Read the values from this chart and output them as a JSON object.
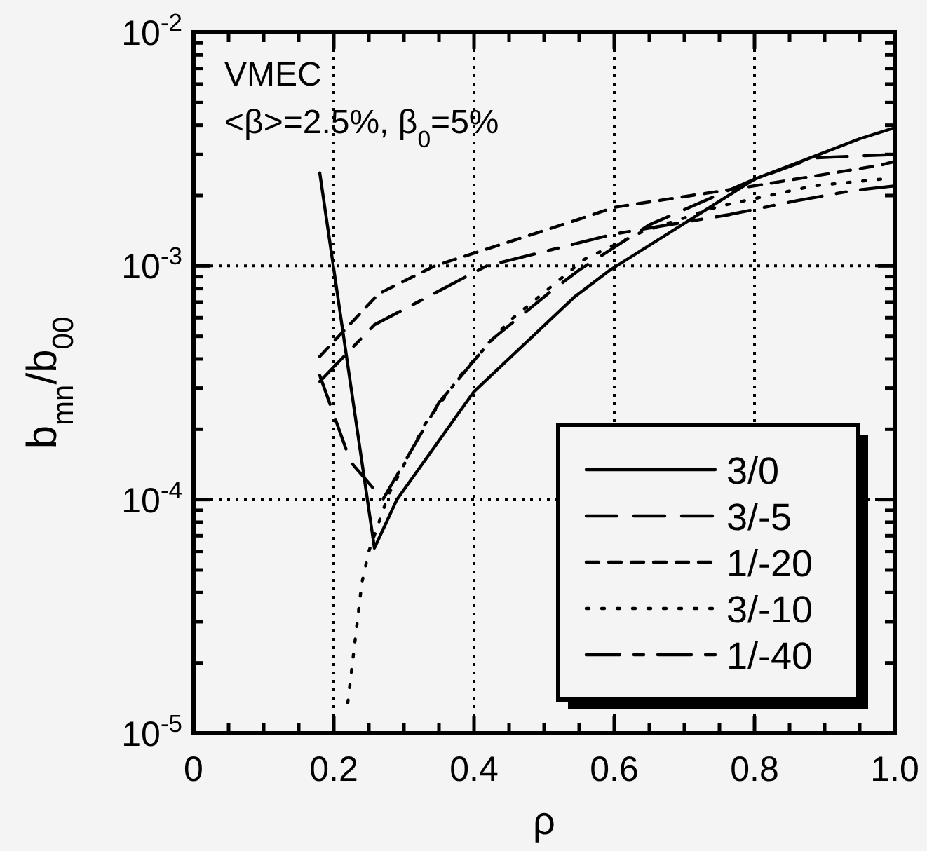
{
  "chart_data": {
    "type": "line",
    "xlabel": "ρ",
    "ylabel": "b$_{mn}$/b$_{00}$",
    "annotations": [
      "VMEC",
      "<β>=2.5%, β$_{0}$=5%"
    ],
    "log": "y",
    "grid": true,
    "legend": "bottom right",
    "xlim": [
      0,
      1
    ],
    "ylim": [
      1e-05,
      0.01
    ],
    "xticks": [
      0,
      {
        "value": 0.05,
        "label": null
      },
      {
        "value": 0.1,
        "label": null
      },
      {
        "value": 0.15,
        "label": null
      },
      0.2,
      {
        "value": 0.25,
        "label": null
      },
      {
        "value": 0.3,
        "label": null
      },
      {
        "value": 0.35,
        "label": null
      },
      0.4,
      {
        "value": 0.45,
        "label": null
      },
      {
        "value": 0.5,
        "label": null
      },
      {
        "value": 0.55,
        "label": null
      },
      0.6,
      {
        "value": 0.65,
        "label": null
      },
      {
        "value": 0.7,
        "label": null
      },
      {
        "value": 0.75,
        "label": null
      },
      0.8,
      {
        "value": 0.85,
        "label": null
      },
      {
        "value": 0.9,
        "label": null
      },
      {
        "value": 0.95,
        "label": null
      },
      {
        "value": 1,
        "label": "1.0"
      }
    ],
    "yticks": [
      {
        "value": 1e-05,
        "label": "10$^{-5}$"
      },
      {
        "value": 2e-05,
        "label": null
      },
      {
        "value": 3e-05,
        "label": null
      },
      {
        "value": 4e-05,
        "label": null
      },
      {
        "value": 5e-05,
        "label": null
      },
      {
        "value": 6e-05,
        "label": null
      },
      {
        "value": 7e-05,
        "label": null
      },
      {
        "value": 8e-05,
        "label": null
      },
      {
        "value": 9e-05,
        "label": null
      },
      {
        "value": 0.0001,
        "label": "10$^{-4}$"
      },
      {
        "value": 0.0002,
        "label": null
      },
      {
        "value": 0.0003,
        "label": null
      },
      {
        "value": 0.0004,
        "label": null
      },
      {
        "value": 0.0005,
        "label": null
      },
      {
        "value": 0.0006,
        "label": null
      },
      {
        "value": 0.0007,
        "label": null
      },
      {
        "value": 0.0008,
        "label": null
      },
      {
        "value": 0.0009,
        "label": null
      },
      {
        "value": 0.001,
        "label": "10$^{-3}$"
      },
      {
        "value": 0.002,
        "label": null
      },
      {
        "value": 0.003,
        "label": null
      },
      {
        "value": 0.004,
        "label": null
      },
      {
        "value": 0.005,
        "label": null
      },
      {
        "value": 0.006,
        "label": null
      },
      {
        "value": 0.007,
        "label": null
      },
      {
        "value": 0.008,
        "label": null
      },
      {
        "value": 0.009,
        "label": null
      },
      {
        "value": 0.01,
        "label": "10$^{-2}$"
      }
    ],
    "series": [
      {
        "name": "3/0",
        "color": "#000000",
        "line_style": "solid",
        "x": [
          0.18,
          0.258,
          0.29,
          0.4,
          0.544,
          0.594,
          0.8,
          0.95,
          1.0
        ],
        "values": [
          0.0025,
          6.2e-05,
          0.0001,
          0.00029,
          0.00074,
          0.00096,
          0.00235,
          0.0035,
          0.0039
        ]
      },
      {
        "name": "3/-5",
        "color": "#000000",
        "line_style": "longdash",
        "x": [
          0.18,
          0.224,
          0.27,
          0.35,
          0.424,
          0.51,
          0.55,
          0.65,
          0.8,
          0.884,
          1.0
        ],
        "values": [
          0.00034,
          0.000145,
          0.0001,
          0.00026,
          0.00048,
          0.00078,
          0.00096,
          0.0015,
          0.00235,
          0.0029,
          0.003
        ]
      },
      {
        "name": "1/-20",
        "color": "#000000",
        "line_style": "dashed",
        "x": [
          0.18,
          0.264,
          0.344,
          0.54,
          0.6,
          0.8,
          0.98,
          1.0
        ],
        "values": [
          0.00041,
          0.00076,
          0.001,
          0.00155,
          0.00178,
          0.0022,
          0.0027,
          0.0028
        ]
      },
      {
        "name": "3/-10",
        "color": "#000000",
        "line_style": "dotted",
        "x": [
          0.22,
          0.24,
          0.25,
          0.278,
          0.33,
          0.384,
          0.45,
          0.558,
          0.64,
          0.75,
          0.884,
          0.98
        ],
        "values": [
          1.35e-05,
          4.4e-05,
          6e-05,
          0.000105,
          0.00021,
          0.00035,
          0.00058,
          0.00107,
          0.0014,
          0.0018,
          0.0022,
          0.00235
        ]
      },
      {
        "name": "1/-40",
        "color": "#000000",
        "line_style": "dashdot",
        "x": [
          0.18,
          0.258,
          0.418,
          0.524,
          0.6,
          0.765,
          0.86,
          0.94,
          1.0
        ],
        "values": [
          0.00032,
          0.00056,
          0.001,
          0.0012,
          0.00137,
          0.00166,
          0.0019,
          0.0021,
          0.0022
        ]
      }
    ]
  }
}
